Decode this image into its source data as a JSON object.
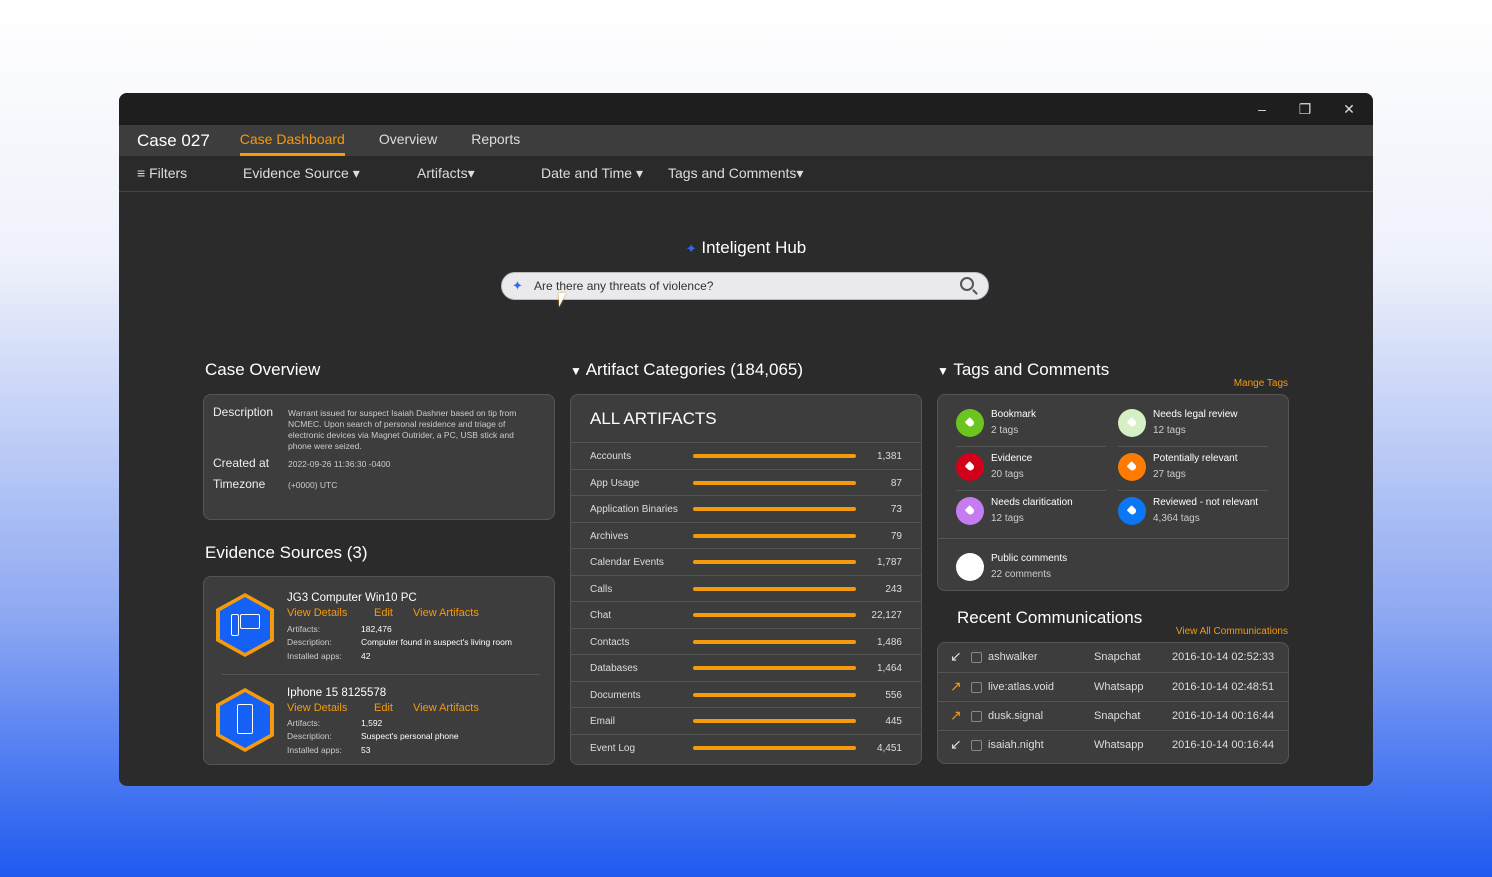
{
  "window": {
    "controls": [
      "minimize",
      "restore",
      "close"
    ]
  },
  "nav": {
    "case_title": "Case 027",
    "tabs": [
      {
        "label": "Case Dashboard",
        "active": true
      },
      {
        "label": "Overview"
      },
      {
        "label": "Reports"
      }
    ]
  },
  "filters": {
    "filters_label": "Filters",
    "evidence_source": "Evidence Source",
    "artifacts": "Artifacts",
    "date_time": "Date and Time",
    "tags_comments": "Tags and Comments"
  },
  "hub": {
    "title": "Inteligent Hub",
    "search_value": "Are there any threats of violence?"
  },
  "case_overview": {
    "title": "Case Overview",
    "description_label": "Description",
    "description": "Warrant issued for suspect Isaiah Dashner based on tip from NCMEC. Upon search of personal residence and triage of electronic devices via Magnet Outrider, a PC, USB stick and phone were seized.",
    "created_label": "Created at",
    "created": "2022-09-26 11:36:30 -0400",
    "timezone_label": "Timezone",
    "timezone": "(+0000) UTC"
  },
  "evidence_sources": {
    "title": "Evidence Sources (3)",
    "view_details": "View Details",
    "edit": "Edit",
    "view_artifacts": "View Artifacts",
    "artifacts_label": "Artifacts:",
    "description_label": "Description:",
    "apps_label": "Installed apps:",
    "items": [
      {
        "name": "JG3 Computer Win10 PC",
        "icon": "desktop-icon",
        "artifacts": "182,476",
        "description": "Computer found in suspect's living room",
        "apps": "42"
      },
      {
        "name": "Iphone 15 8125578",
        "icon": "phone-icon",
        "artifacts": "1,592",
        "description": "Suspect's personal phone",
        "apps": "53"
      }
    ]
  },
  "artifact_categories": {
    "title": "Artifact Categories",
    "count": "(184,065)",
    "header": "ALL ARTIFACTS",
    "items": [
      {
        "label": "Accounts",
        "value": "1,381"
      },
      {
        "label": "App Usage",
        "value": "87"
      },
      {
        "label": "Application Binaries",
        "value": "73"
      },
      {
        "label": "Archives",
        "value": "79"
      },
      {
        "label": "Calendar Events",
        "value": "1,787"
      },
      {
        "label": "Calls",
        "value": "243"
      },
      {
        "label": "Chat",
        "value": "22,127"
      },
      {
        "label": "Contacts",
        "value": "1,486"
      },
      {
        "label": "Databases",
        "value": "1,464"
      },
      {
        "label": "Documents",
        "value": "556"
      },
      {
        "label": "Email",
        "value": "445"
      },
      {
        "label": "Event Log",
        "value": "4,451"
      }
    ]
  },
  "tags": {
    "title": "Tags and Comments",
    "manage": "Mange Tags",
    "items": [
      {
        "name": "Bookmark",
        "count": "2 tags",
        "color": "#6cc51f"
      },
      {
        "name": "Needs legal review",
        "count": "12 tags",
        "color": "#d6efc4"
      },
      {
        "name": "Evidence",
        "count": "20 tags",
        "color": "#d3001b"
      },
      {
        "name": "Potentially relevant",
        "count": "27 tags",
        "color": "#ff7a00"
      },
      {
        "name": "Needs claritication",
        "count": "12 tags",
        "color": "#c57cf0"
      },
      {
        "name": "Reviewed - not relevant",
        "count": "4,364 tags",
        "color": "#0a78f5"
      }
    ],
    "comments": {
      "name": "Public comments",
      "count": "22 comments"
    }
  },
  "communications": {
    "title": "Recent Communications",
    "view_all": "View All Communications",
    "items": [
      {
        "direction": "incoming",
        "name": "ashwalker",
        "app": "Snapchat",
        "time": "2016-10-14 02:52:33"
      },
      {
        "direction": "outgoing",
        "name": "live:atlas.void",
        "app": "Whatsapp",
        "time": "2016-10-14 02:48:51"
      },
      {
        "direction": "outgoing",
        "name": "dusk.signal",
        "app": "Snapchat",
        "time": "2016-10-14 00:16:44"
      },
      {
        "direction": "incoming",
        "name": "isaiah.night",
        "app": "Whatsapp",
        "time": "2016-10-14 00:16:44"
      }
    ]
  }
}
